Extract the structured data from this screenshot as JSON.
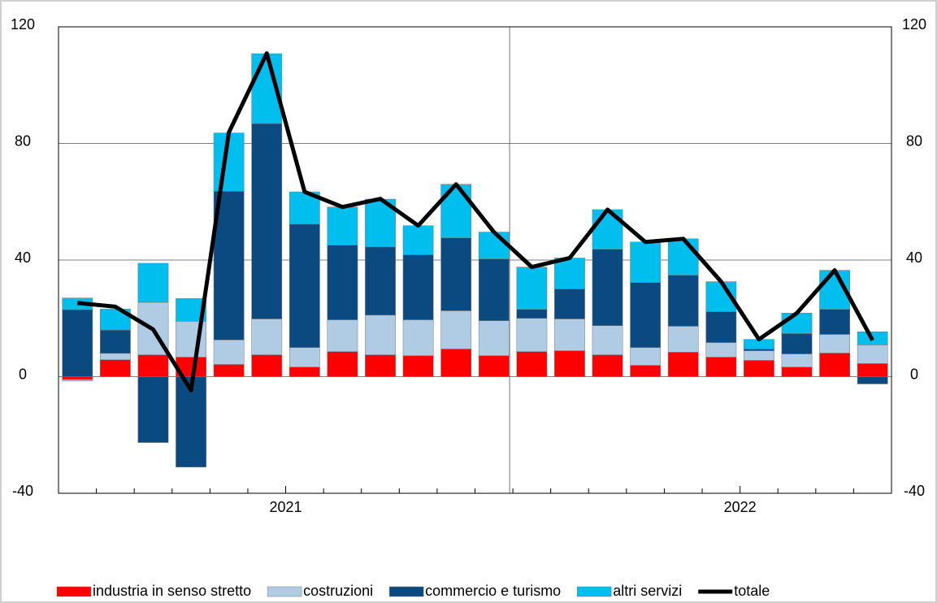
{
  "chart_data": {
    "type": "bar",
    "stacked": true,
    "categories": [
      null,
      null,
      null,
      null,
      null,
      null,
      "2021",
      null,
      null,
      null,
      null,
      null,
      null,
      null,
      null,
      null,
      null,
      null,
      "2022",
      null,
      null,
      null
    ],
    "ylim": [
      -40,
      120
    ],
    "yticks": [
      -40,
      0,
      40,
      80,
      120
    ],
    "y2lim": [
      -40,
      120
    ],
    "y2ticks": [
      -40,
      0,
      40,
      80,
      120
    ],
    "grid": true,
    "series": [
      {
        "name": "industria in senso stretto",
        "color": "#ff0000",
        "values": [
          -1,
          5.8,
          7.5,
          6.7,
          4.2,
          7.5,
          3.3,
          8.6,
          7.5,
          7.2,
          9.5,
          7.2,
          8.6,
          8.9,
          7.5,
          3.9,
          8.4,
          6.7,
          5.6,
          3.3,
          8.1,
          4.5
        ]
      },
      {
        "name": "costruzioni",
        "color": "#b0cce4",
        "values": [
          -0.5,
          2.2,
          18,
          12.3,
          8.4,
          12.3,
          6.7,
          10.9,
          13.6,
          12.3,
          13.1,
          12,
          11.4,
          10.9,
          10,
          6.1,
          8.9,
          5,
          3.3,
          4.5,
          6.4,
          6.4
        ]
      },
      {
        "name": "commercio e turismo",
        "color": "#0a4a80",
        "values": [
          23,
          8,
          -22.6,
          -31,
          51,
          67,
          42.3,
          25.6,
          23.4,
          22.3,
          25,
          21.2,
          3.1,
          10.3,
          26.2,
          22.3,
          17.5,
          10.6,
          0.6,
          7,
          8.6,
          -2.5
        ]
      },
      {
        "name": "altri servizi",
        "color": "#00bfef",
        "values": [
          4,
          7.2,
          13.4,
          7.8,
          20,
          24,
          11.1,
          13.1,
          16.4,
          10,
          18.4,
          9.2,
          14.5,
          10.6,
          13.6,
          13.9,
          12.5,
          10.3,
          3.3,
          7,
          13.4,
          4.5
        ]
      },
      {
        "name": "totale",
        "type": "line",
        "color": "#000000",
        "values": [
          25.3,
          24,
          16.2,
          -4.7,
          83.8,
          110.9,
          63.4,
          58.2,
          61,
          51.8,
          66,
          49.6,
          37.6,
          40.7,
          57.3,
          46.2,
          47.3,
          32.6,
          12.8,
          21.8,
          36.5,
          12.5
        ]
      }
    ]
  }
}
